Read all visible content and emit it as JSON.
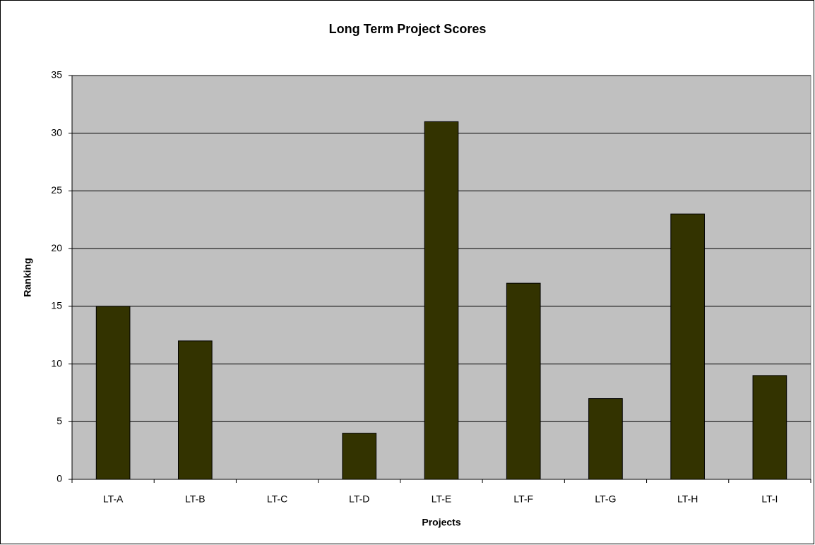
{
  "chart_data": {
    "type": "bar",
    "title": "Long Term Project Scores",
    "x_label": "Projects",
    "y_label": "Ranking",
    "categories": [
      "LT-A",
      "LT-B",
      "LT-C",
      "LT-D",
      "LT-E",
      "LT-F",
      "LT-G",
      "LT-H",
      "LT-I"
    ],
    "values": [
      15,
      12,
      0,
      4,
      31,
      17,
      7,
      23,
      9
    ],
    "color": "#333300",
    "ylim": [
      0,
      35
    ],
    "yticks": [
      0,
      5,
      10,
      15,
      20,
      25,
      30,
      35
    ],
    "grid": true
  }
}
